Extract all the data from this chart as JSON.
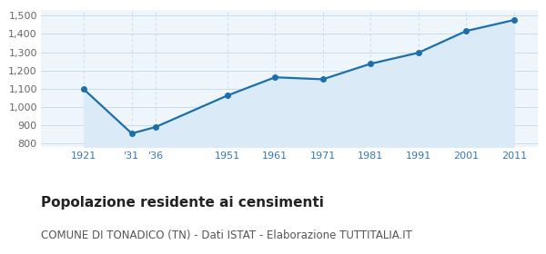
{
  "years": [
    1921,
    1931,
    1936,
    1951,
    1961,
    1971,
    1981,
    1991,
    2001,
    2011
  ],
  "population": [
    1097,
    856,
    891,
    1063,
    1163,
    1152,
    1237,
    1297,
    1416,
    1476
  ],
  "x_tick_labels": [
    "1921",
    "'31",
    "'36",
    "1951",
    "1961",
    "1971",
    "1981",
    "1991",
    "2001",
    "2011"
  ],
  "ylim": [
    780,
    1530
  ],
  "yticks": [
    800,
    900,
    1000,
    1100,
    1200,
    1300,
    1400,
    1500
  ],
  "ytick_labels": [
    "800",
    "900",
    "1,000",
    "1,100",
    "1,200",
    "1,300",
    "1,400",
    "1,500"
  ],
  "line_color": "#1c6faa",
  "fill_color": "#daeaf6",
  "marker_color": "#1c6faa",
  "grid_color": "#c8dcea",
  "background_color": "#eef5fb",
  "title": "Popolazione residente ai censimenti",
  "subtitle": "COMUNE DI TONADICO (TN) - Dati ISTAT - Elaborazione TUTTITALIA.IT",
  "title_fontsize": 11,
  "subtitle_fontsize": 8.5,
  "tick_color": "#3377bb",
  "tick_fontsize": 8,
  "xlim_left": 1912,
  "xlim_right": 2016
}
